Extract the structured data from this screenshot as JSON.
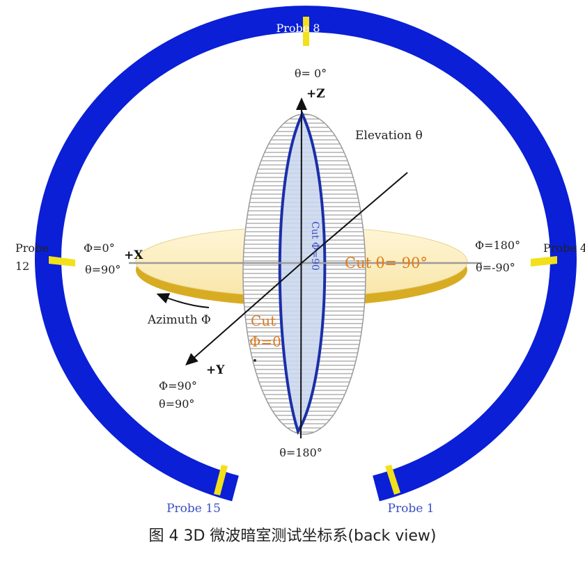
{
  "probes": {
    "top": "Probe 8",
    "left_line1": "Probe",
    "left_line2": "12",
    "right": "Probe 4",
    "bottom_left": "Probe 15",
    "bottom_right": "Probe 1"
  },
  "axes": {
    "z_axis": "+Z",
    "x_axis": "+X",
    "y_axis": "+Y"
  },
  "angles": {
    "theta_top": "θ= 0°",
    "theta_bottom": "θ=180°",
    "elevation": "Elevation θ",
    "azimuth": "Azimuth Φ",
    "left_phi": "Φ=0°",
    "left_theta": "θ=90°",
    "right_phi": "Φ=180°",
    "right_theta": "θ=-90°",
    "y_phi": "Φ=90°",
    "y_theta": "θ=90°"
  },
  "cuts": {
    "horizontal": "Cut θ= 90°",
    "vertical_line1": "Cut",
    "vertical_line2": "Φ=0",
    "vertical_ellipse": "Cut Φ=90"
  },
  "caption": {
    "prefix": "图 4 3D 微波暗室测试坐标系",
    "suffix": "(back view)"
  },
  "colors": {
    "ring": "#0a1fd6",
    "probe_marker": "#f2e01a",
    "cut_orange": "#e07a1a",
    "probe_blue_text": "#3a4fc2",
    "disc_fill": "#fbeec0",
    "disc_rim": "#d8ac22"
  }
}
